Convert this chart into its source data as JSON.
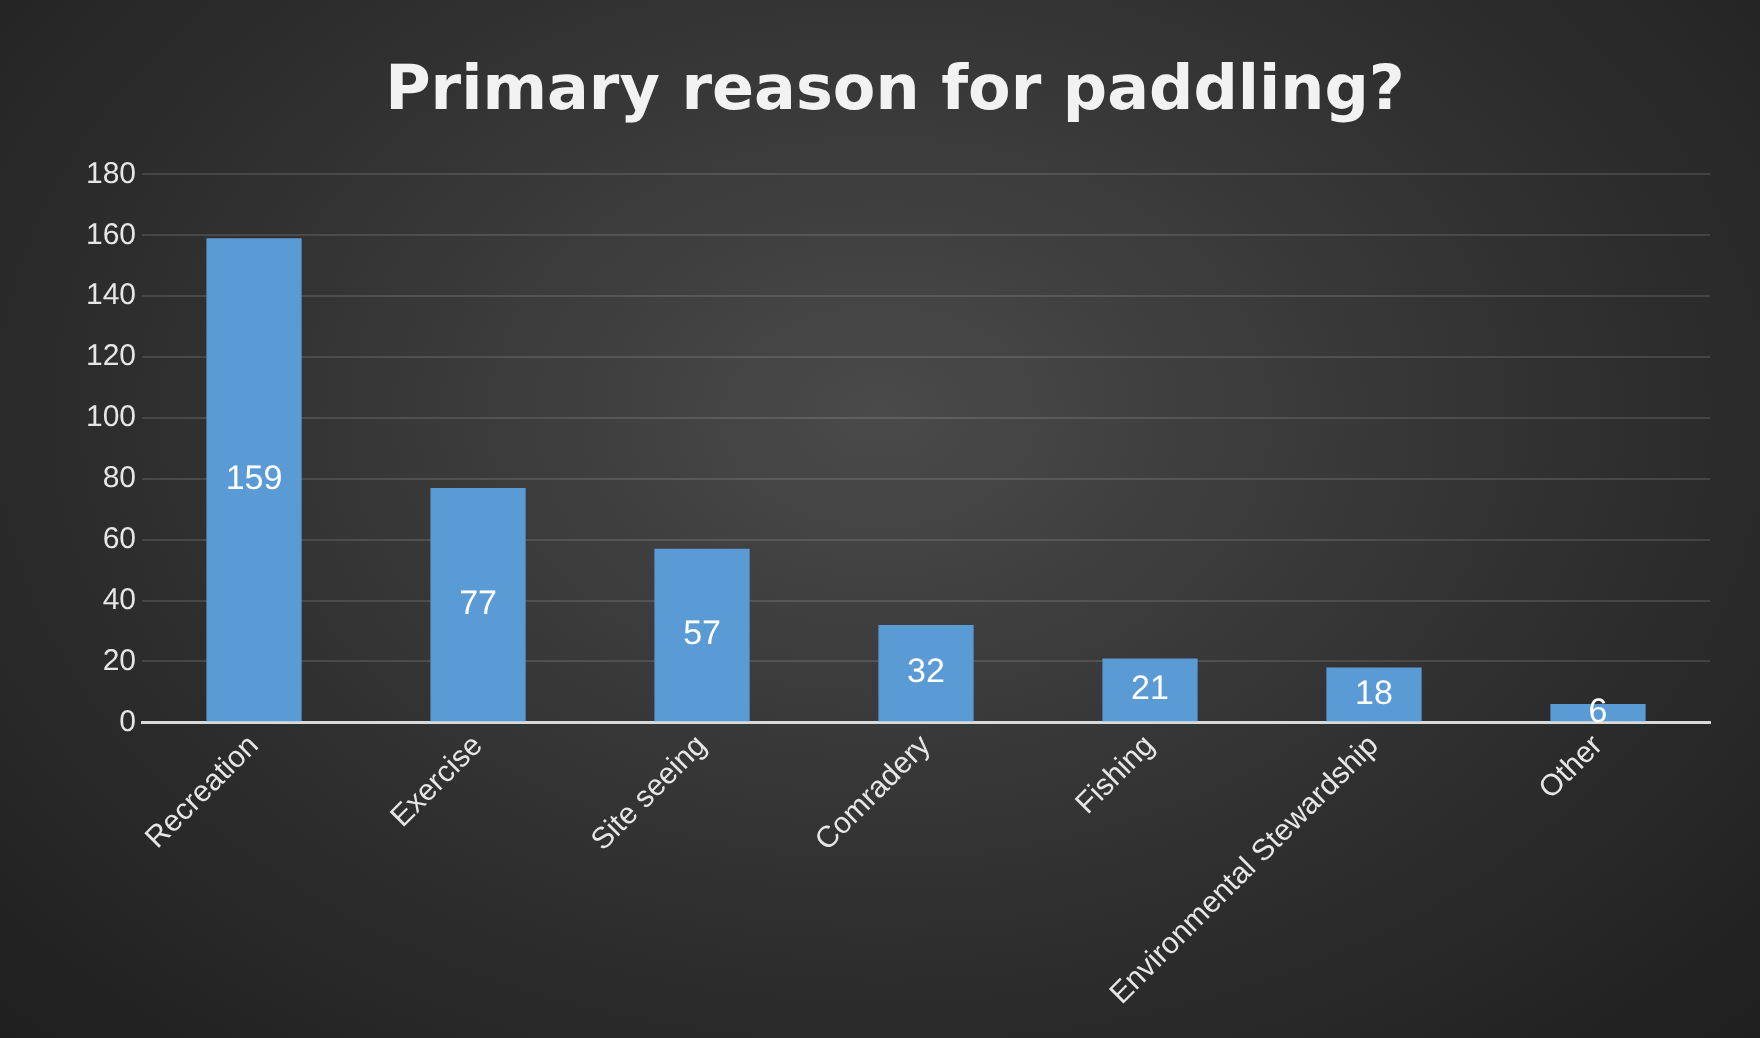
{
  "chart_data": {
    "type": "bar",
    "title": "Primary reason for paddling?",
    "categories": [
      "Recreation",
      "Exercise",
      "Site seeing",
      "Comradery",
      "Fishing",
      "Environmental Stewardship",
      "Other"
    ],
    "values": [
      159,
      77,
      57,
      32,
      21,
      18,
      6
    ],
    "color": "#5b9bd5",
    "ylim": [
      0,
      180
    ],
    "yticks": [
      0,
      20,
      40,
      60,
      80,
      100,
      120,
      140,
      160,
      180
    ],
    "grid": "y",
    "data_labels": true
  }
}
